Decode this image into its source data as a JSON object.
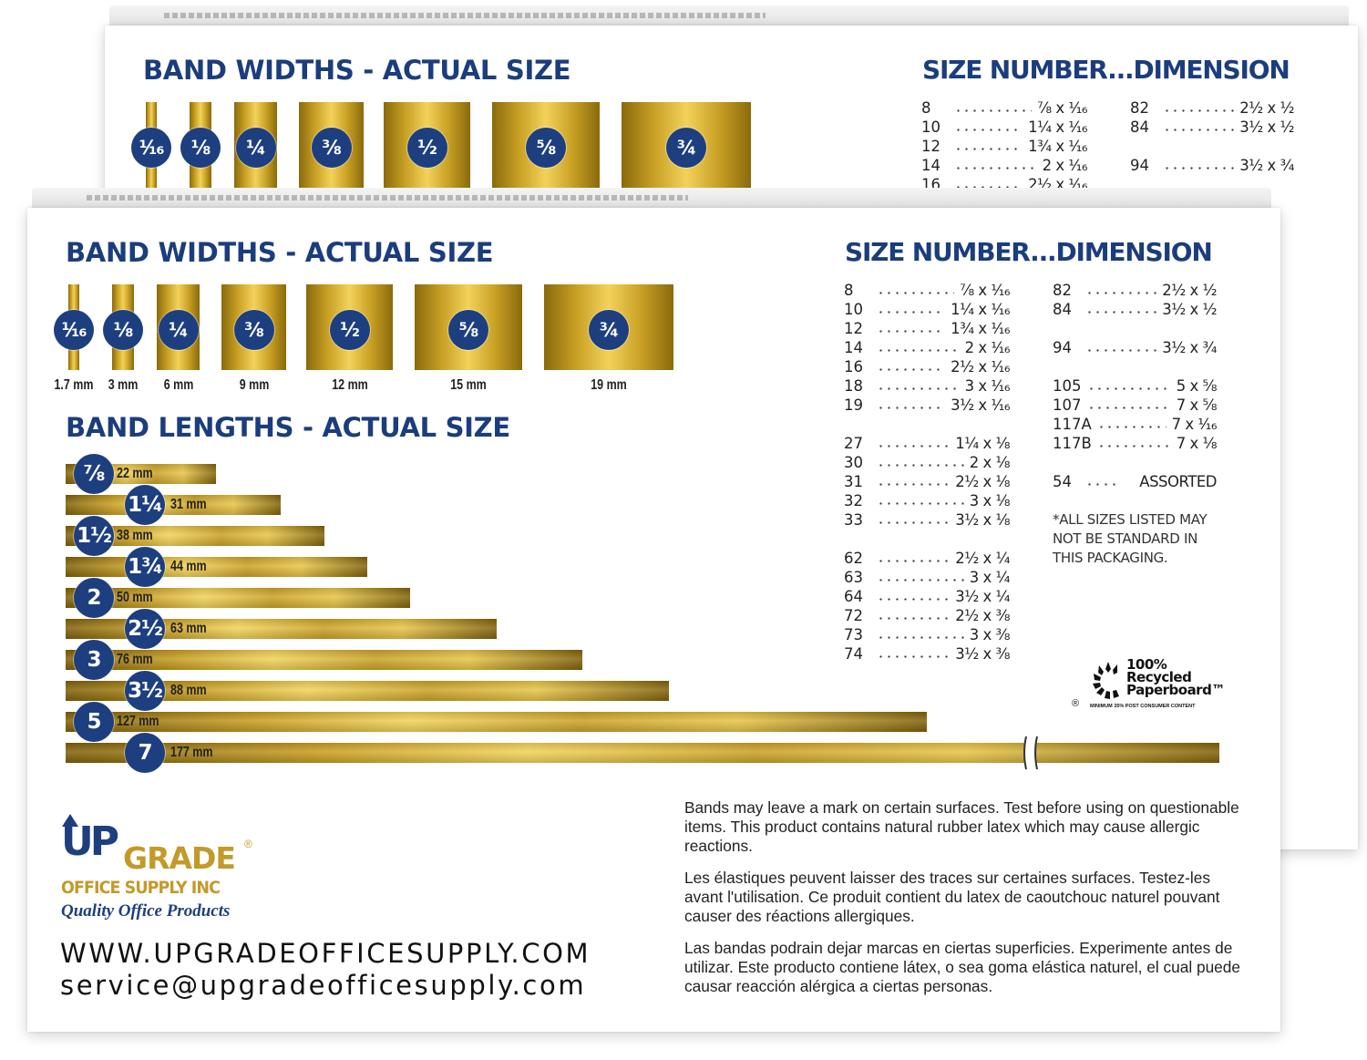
{
  "widths_title": "BAND WIDTHS - ACTUAL SIZE",
  "lengths_title": "BAND LENGTHS - ACTUAL SIZE",
  "sizes_title": "SIZE NUMBER...DIMENSION",
  "colors": {
    "navy": "#1d3f80",
    "title_blue": "#1b3d7d",
    "gold": "#c8a024",
    "logo_gold": "#c39a2a"
  },
  "band_widths": [
    {
      "label": "¹⁄₁₆",
      "mm": "1.7 mm",
      "inches": 0.0625
    },
    {
      "label": "⅛",
      "mm": "3 mm",
      "inches": 0.125
    },
    {
      "label": "¼",
      "mm": "6 mm",
      "inches": 0.25
    },
    {
      "label": "⅜",
      "mm": "9 mm",
      "inches": 0.375
    },
    {
      "label": "½",
      "mm": "12 mm",
      "inches": 0.5
    },
    {
      "label": "⅝",
      "mm": "15 mm",
      "inches": 0.625
    },
    {
      "label": "¾",
      "mm": "19 mm",
      "inches": 0.75
    }
  ],
  "band_lengths": [
    {
      "label": "⅞",
      "mm": "22 mm",
      "inches": 0.875
    },
    {
      "label": "1¼",
      "mm": "31 mm",
      "inches": 1.25
    },
    {
      "label": "1½",
      "mm": "38 mm",
      "inches": 1.5
    },
    {
      "label": "1¾",
      "mm": "44 mm",
      "inches": 1.75
    },
    {
      "label": "2",
      "mm": "50 mm",
      "inches": 2
    },
    {
      "label": "2½",
      "mm": "63 mm",
      "inches": 2.5
    },
    {
      "label": "3",
      "mm": "76 mm",
      "inches": 3
    },
    {
      "label": "3½",
      "mm": "88 mm",
      "inches": 3.5
    },
    {
      "label": "5",
      "mm": "127 mm",
      "inches": 5
    },
    {
      "label": "7",
      "mm": "177 mm",
      "inches": 7
    }
  ],
  "sizes_left": [
    {
      "num": "8",
      "dim": "⅞ x ¹⁄₁₆"
    },
    {
      "num": "10",
      "dim": "1¼ x ¹⁄₁₆"
    },
    {
      "num": "12",
      "dim": "1¾ x ¹⁄₁₆"
    },
    {
      "num": "14",
      "dim": "2 x ¹⁄₁₆"
    },
    {
      "num": "16",
      "dim": "2½ x ¹⁄₁₆"
    },
    {
      "num": "18",
      "dim": "3 x ¹⁄₁₆"
    },
    {
      "num": "19",
      "dim": "3½ x ¹⁄₁₆"
    },
    null,
    {
      "num": "27",
      "dim": "1¼ x ⅛"
    },
    {
      "num": "30",
      "dim": "2 x ⅛"
    },
    {
      "num": "31",
      "dim": "2½ x ⅛"
    },
    {
      "num": "32",
      "dim": "3 x ⅛"
    },
    {
      "num": "33",
      "dim": "3½ x ⅛"
    },
    null,
    {
      "num": "62",
      "dim": "2½ x ¼"
    },
    {
      "num": "63",
      "dim": "3 x ¼"
    },
    {
      "num": "64",
      "dim": "3½ x ¼"
    },
    {
      "num": "72",
      "dim": "2½ x ⅜"
    },
    {
      "num": "73",
      "dim": "3 x ⅜"
    },
    {
      "num": "74",
      "dim": "3½ x ⅜"
    }
  ],
  "sizes_right": [
    {
      "num": "82",
      "dim": "2½ x ½"
    },
    {
      "num": "84",
      "dim": "3½ x ½"
    },
    null,
    {
      "num": "94",
      "dim": "3½ x ¾"
    },
    null,
    {
      "num": "105",
      "dim": "5 x ⅝"
    },
    {
      "num": "107",
      "dim": "7 x ⅝"
    },
    {
      "num": "117A",
      "dim": "7 x ¹⁄₁₆"
    },
    {
      "num": "117B",
      "dim": "7 x ⅛"
    },
    null,
    {
      "num": "54",
      "dim": "ASSORTED"
    }
  ],
  "sizes_note": [
    "*ALL SIZES LISTED MAY",
    "NOT BE STANDARD IN",
    "THIS PACKAGING."
  ],
  "badge": {
    "line1": "100%",
    "line2": "Recycled",
    "line3": "Paperboard™",
    "fine_print": "MINIMUM 35% POST CONSUMER CONTENT",
    "reg": "®"
  },
  "warnings": [
    "Bands may leave a mark on certain surfaces. Test before using on questionable items. This product contains natural rubber latex which may cause allergic reactions.",
    "Les élastiques peuvent laisser des traces sur certaines surfaces. Testez-les avant l'utilisation. Ce produit contient du latex de caoutchouc naturel pouvant causer des réactions allergiques.",
    "Las bandas podrain dejar marcas en ciertas superficies. Experimente antes de utilizar. Este producto contiene látex, o sea goma elástica naturel, el cual puede causar reacción alérgica a ciertas personas."
  ],
  "logo": {
    "up": "UP",
    "grade": "GRADE",
    "reg": "®",
    "company": "OFFICE SUPPLY INC",
    "tagline": "Quality Office Products"
  },
  "website": "WWW.UPGRADEOFFICESUPPLY.COM",
  "email": "service@upgradeofficesupply.com"
}
